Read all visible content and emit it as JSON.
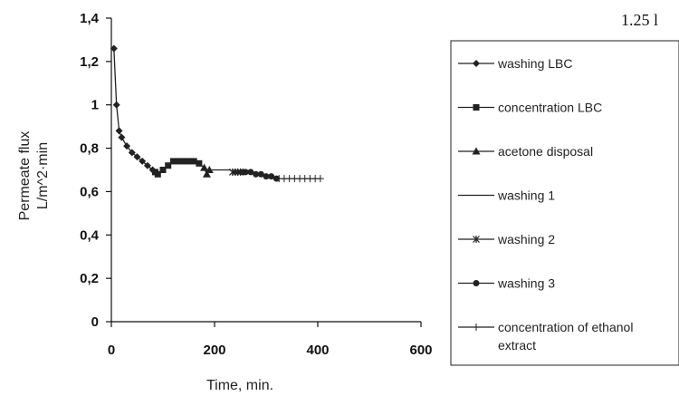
{
  "corner_text": "1.25 l",
  "chart_data": {
    "type": "line",
    "xlabel": "Time, min.",
    "ylabel_line1": "Permeate flux",
    "ylabel_line2": "L/m^2·min",
    "xlim": [
      0,
      600
    ],
    "ylim": [
      0,
      1.4
    ],
    "x_ticks": [
      {
        "value": 0,
        "label": "0"
      },
      {
        "value": 200,
        "label": "200"
      },
      {
        "value": 400,
        "label": "400"
      },
      {
        "value": 600,
        "label": "600"
      }
    ],
    "y_ticks": [
      {
        "value": 0,
        "label": "0"
      },
      {
        "value": 0.2,
        "label": "0,2"
      },
      {
        "value": 0.4,
        "label": "0,4"
      },
      {
        "value": 0.6,
        "label": "0,6"
      },
      {
        "value": 0.8,
        "label": "0,8"
      },
      {
        "value": 1,
        "label": "1"
      },
      {
        "value": 1.2,
        "label": "1,2"
      },
      {
        "value": 1.4,
        "label": "1,4"
      }
    ],
    "legend_position": "right",
    "series": [
      {
        "name": "washing LBC",
        "marker": "diamond",
        "points": [
          [
            5,
            1.26
          ],
          [
            10,
            1.0
          ],
          [
            15,
            0.88
          ],
          [
            20,
            0.85
          ],
          [
            30,
            0.81
          ],
          [
            40,
            0.78
          ],
          [
            50,
            0.76
          ],
          [
            60,
            0.74
          ],
          [
            70,
            0.72
          ],
          [
            80,
            0.7
          ]
        ]
      },
      {
        "name": "concentration LBC",
        "marker": "square",
        "points": [
          [
            85,
            0.69
          ],
          [
            90,
            0.68
          ],
          [
            100,
            0.7
          ],
          [
            110,
            0.72
          ],
          [
            120,
            0.74
          ],
          [
            130,
            0.74
          ],
          [
            140,
            0.74
          ],
          [
            150,
            0.74
          ],
          [
            160,
            0.74
          ],
          [
            170,
            0.73
          ]
        ]
      },
      {
        "name": "acetone disposal",
        "marker": "triangle",
        "points": [
          [
            180,
            0.71
          ],
          [
            185,
            0.68
          ],
          [
            190,
            0.7
          ]
        ]
      },
      {
        "name": "washing 1",
        "marker": "dash",
        "points": [
          [
            195,
            0.7
          ],
          [
            200,
            0.7
          ],
          [
            210,
            0.7
          ],
          [
            220,
            0.7
          ],
          [
            230,
            0.7
          ]
        ]
      },
      {
        "name": "washing 2",
        "marker": "star",
        "points": [
          [
            235,
            0.69
          ],
          [
            240,
            0.69
          ],
          [
            245,
            0.69
          ],
          [
            250,
            0.69
          ]
        ]
      },
      {
        "name": "washing 3",
        "marker": "circle",
        "points": [
          [
            255,
            0.69
          ],
          [
            260,
            0.69
          ],
          [
            270,
            0.69
          ],
          [
            280,
            0.68
          ],
          [
            290,
            0.68
          ],
          [
            300,
            0.67
          ],
          [
            310,
            0.67
          ],
          [
            320,
            0.66
          ]
        ]
      },
      {
        "name": "concentration of ethanol extract",
        "legend_lines": [
          "concentration of ethanol",
          "extract"
        ],
        "marker": "plus",
        "points": [
          [
            325,
            0.66
          ],
          [
            335,
            0.66
          ],
          [
            345,
            0.66
          ],
          [
            355,
            0.66
          ],
          [
            365,
            0.66
          ],
          [
            375,
            0.66
          ],
          [
            385,
            0.66
          ],
          [
            395,
            0.66
          ],
          [
            405,
            0.66
          ]
        ]
      }
    ]
  }
}
